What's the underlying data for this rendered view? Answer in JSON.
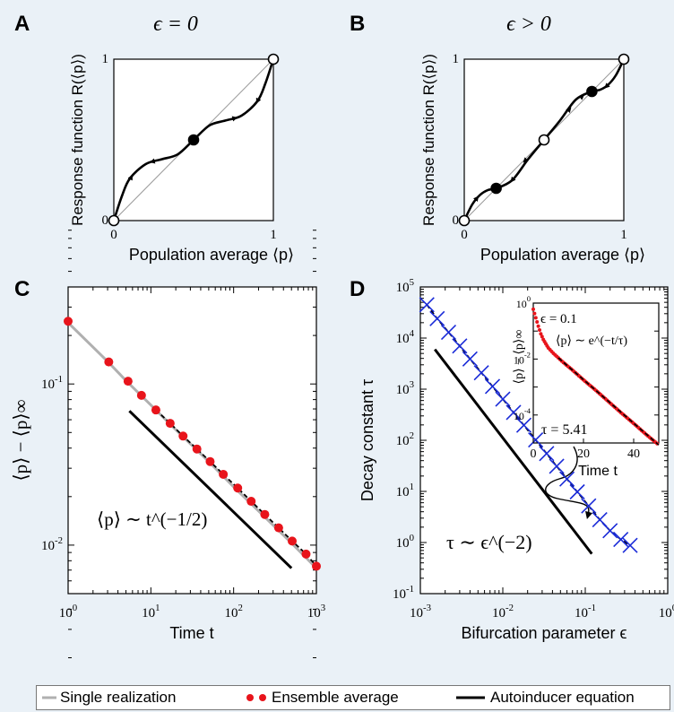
{
  "panels": {
    "A": {
      "letter": "A",
      "title": "ϵ = 0",
      "ylabel": "Response function R(⟨p⟩)",
      "xlabel": "Population average ⟨p⟩",
      "tick_0": "0",
      "tick_1": "1"
    },
    "B": {
      "letter": "B",
      "title": "ϵ > 0",
      "ylabel": "Response function R(⟨p⟩)",
      "xlabel": "Population average ⟨p⟩",
      "tick_0": "0",
      "tick_1": "1"
    },
    "C": {
      "letter": "C",
      "ylabel": "⟨p⟩ − ⟨p⟩∞",
      "xlabel": "Time t",
      "annotation": "⟨p⟩ ∼ t^(−1/2)"
    },
    "D": {
      "letter": "D",
      "ylabel": "Decay constant τ",
      "xlabel": "Bifurcation parameter ϵ",
      "annotation": "τ ∼ ϵ^(−2)",
      "inset": {
        "ylabel": "⟨p⟩ − ⟨p⟩∞",
        "xlabel": "Time t",
        "eps_label": "ϵ = 0.1",
        "law_label": "⟨p⟩ ∼ e^(−t/τ)",
        "tau_label": "τ = 5.41"
      }
    }
  },
  "legend": {
    "single": "Single realization",
    "ensemble": "Ensemble average",
    "autoinducer": "Autoinducer equation"
  },
  "colors": {
    "background": "#eaf1f7",
    "ensemble": "#e8141b",
    "crosses": "#1a2bd8",
    "single": "#b0b0b0",
    "line": "#000000"
  },
  "chart_data": [
    {
      "id": "A",
      "type": "line",
      "title": "ϵ = 0",
      "xlabel": "Population average ⟨p⟩",
      "ylabel": "Response function R(⟨p⟩)",
      "xlim": [
        0,
        1
      ],
      "ylim": [
        0,
        1
      ],
      "series": [
        {
          "x": [
            0,
            0.05,
            0.1,
            0.2,
            0.3,
            0.4,
            0.5,
            0.6,
            0.7,
            0.8,
            0.9,
            0.95,
            1.0
          ],
          "y": [
            0,
            0.15,
            0.26,
            0.35,
            0.38,
            0.41,
            0.5,
            0.59,
            0.62,
            0.65,
            0.74,
            0.85,
            1.0
          ]
        }
      ],
      "fixed_points": [
        {
          "x": 0,
          "stable": false
        },
        {
          "x": 0.5,
          "stable": true
        },
        {
          "x": 1,
          "stable": false
        }
      ]
    },
    {
      "id": "B",
      "type": "line",
      "title": "ϵ > 0",
      "xlabel": "Population average ⟨p⟩",
      "ylabel": "Response function R(⟨p⟩)",
      "xlim": [
        0,
        1
      ],
      "ylim": [
        0,
        1
      ],
      "series": [
        {
          "x": [
            0,
            0.05,
            0.1,
            0.15,
            0.2,
            0.3,
            0.4,
            0.5,
            0.6,
            0.7,
            0.8,
            0.85,
            0.9,
            0.95,
            1.0
          ],
          "y": [
            0,
            0.1,
            0.16,
            0.19,
            0.2,
            0.25,
            0.38,
            0.5,
            0.62,
            0.75,
            0.8,
            0.81,
            0.84,
            0.9,
            1.0
          ]
        }
      ],
      "fixed_points": [
        {
          "x": 0,
          "stable": false
        },
        {
          "x": 0.2,
          "stable": true
        },
        {
          "x": 0.5,
          "stable": false
        },
        {
          "x": 0.8,
          "stable": true
        },
        {
          "x": 1,
          "stable": false
        }
      ]
    },
    {
      "id": "C",
      "type": "scatter",
      "log_x": true,
      "log_y": true,
      "xlabel": "Time t",
      "ylabel": "⟨p⟩ − ⟨p⟩∞",
      "xlim": [
        1,
        1000
      ],
      "ylim": [
        0.005,
        0.4
      ],
      "xticks": [
        "10^0",
        "10^1",
        "10^2",
        "10^3"
      ],
      "yticks": [
        "10^-2",
        "10^-1"
      ],
      "series": [
        {
          "name": "Single realization",
          "x": [
            1,
            3,
            5,
            10,
            20,
            50,
            100,
            200,
            500,
            1000
          ],
          "y": [
            0.24,
            0.138,
            0.105,
            0.074,
            0.052,
            0.033,
            0.023,
            0.0163,
            0.0103,
            0.0072
          ]
        },
        {
          "name": "Ensemble average",
          "x": [
            1,
            3.1,
            5.3,
            7.7,
            11.5,
            17.1,
            24.5,
            36,
            52,
            75,
            112,
            163,
            238,
            350,
            510,
            750,
            1000
          ],
          "y": [
            0.245,
            0.137,
            0.104,
            0.085,
            0.069,
            0.057,
            0.0475,
            0.0395,
            0.033,
            0.0275,
            0.0226,
            0.0187,
            0.0155,
            0.0128,
            0.0106,
            0.0088,
            0.0074
          ]
        },
        {
          "name": "Autoinducer equation",
          "x": [
            5.5,
            500
          ],
          "y": [
            0.068,
            0.0072
          ]
        }
      ]
    },
    {
      "id": "D",
      "type": "scatter",
      "log_x": true,
      "log_y": true,
      "xlabel": "Bifurcation parameter ϵ",
      "ylabel": "Decay constant τ",
      "xlim": [
        0.001,
        1
      ],
      "ylim": [
        0.1,
        100000
      ],
      "xticks": [
        "10^-3",
        "10^-2",
        "10^-1",
        "10^0"
      ],
      "yticks": [
        "10^-1",
        "10^0",
        "10^1",
        "10^2",
        "10^3",
        "10^4",
        "10^5"
      ],
      "series": [
        {
          "name": "crosses",
          "x": [
            0.0012,
            0.0016,
            0.0022,
            0.003,
            0.004,
            0.0055,
            0.0075,
            0.01,
            0.0135,
            0.018,
            0.025,
            0.034,
            0.045,
            0.06,
            0.08,
            0.11,
            0.15,
            0.2,
            0.27,
            0.35
          ],
          "y": [
            45000,
            24000,
            13000,
            7000,
            3900,
            2100,
            1130,
            640,
            350,
            197,
            102,
            55,
            31,
            17.5,
            9.8,
            5.2,
            2.8,
            1.7,
            1.15,
            0.88
          ]
        },
        {
          "name": "Autoinducer equation (dashed)",
          "x": [
            0.0012,
            0.35
          ],
          "y": [
            45000,
            0.88
          ]
        },
        {
          "name": "τ ∼ ϵ^(−2)",
          "x": [
            0.0015,
            0.12
          ],
          "y": [
            6000,
            0.6
          ]
        }
      ],
      "inset": {
        "xlim": [
          0,
          50
        ],
        "ylim": [
          1e-05,
          1
        ],
        "xticks": [
          "0",
          "20",
          "40"
        ],
        "yticks": [
          "10^0",
          "10^-2",
          "10^-4"
        ],
        "series": [
          {
            "name": "Ensemble average",
            "x": [
              0,
              1,
              2,
              3,
              4,
              5,
              6,
              8,
              10,
              12,
              15,
              20,
              25,
              30,
              35,
              40,
              45,
              50
            ],
            "y": [
              0.6,
              0.3,
              0.15,
              0.08,
              0.05,
              0.035,
              0.025,
              0.016,
              0.011,
              0.0075,
              0.0045,
              0.0018,
              0.00075,
              0.0003,
              0.00012,
              5e-05,
              2e-05,
              8.5e-06
            ]
          },
          {
            "name": "fit",
            "x": [
              10,
              50
            ],
            "y": [
              0.011,
              8.5e-06
            ]
          }
        ]
      }
    }
  ]
}
